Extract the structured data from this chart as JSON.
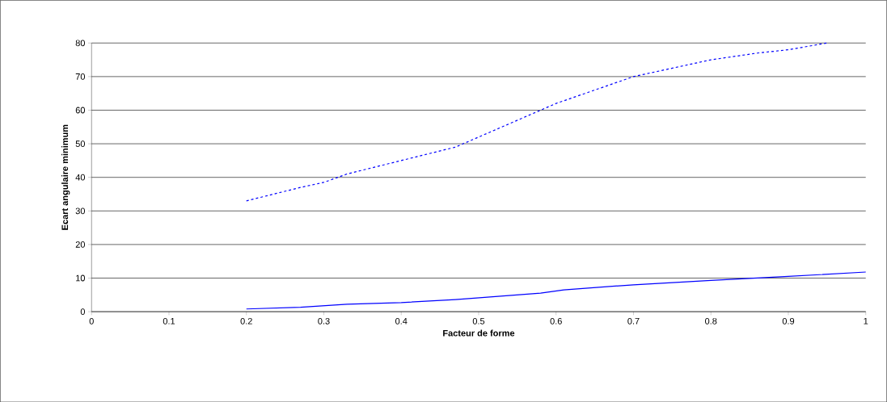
{
  "chart_data": {
    "type": "line",
    "xlabel": "Facteur de forme",
    "ylabel": "Ecart angulaire minimum",
    "xlim": [
      0,
      1
    ],
    "ylim": [
      0,
      80
    ],
    "xticks": [
      0,
      0.1,
      0.2,
      0.3,
      0.4,
      0.5,
      0.6,
      0.7,
      0.8,
      0.9,
      1
    ],
    "yticks": [
      0,
      10,
      20,
      30,
      40,
      50,
      60,
      70,
      80
    ],
    "grid": "y",
    "series": [
      {
        "color": "#0000ff",
        "line_style": "dashed",
        "x": [
          0.2,
          0.27,
          0.3,
          0.33,
          0.4,
          0.47,
          0.5,
          0.58,
          0.6,
          0.7,
          0.8,
          0.86,
          0.9,
          0.95
        ],
        "values": [
          33,
          37,
          38.5,
          41,
          45,
          49,
          52,
          60,
          62,
          70,
          75,
          77,
          78,
          80
        ]
      },
      {
        "color": "#0000ff",
        "line_style": "solid",
        "x": [
          0.2,
          0.27,
          0.33,
          0.4,
          0.47,
          0.58,
          0.61,
          0.7,
          0.8,
          0.9,
          1.0
        ],
        "values": [
          0.8,
          1.3,
          2.2,
          2.7,
          3.6,
          5.5,
          6.5,
          8,
          9.3,
          10.5,
          11.8
        ]
      }
    ]
  }
}
